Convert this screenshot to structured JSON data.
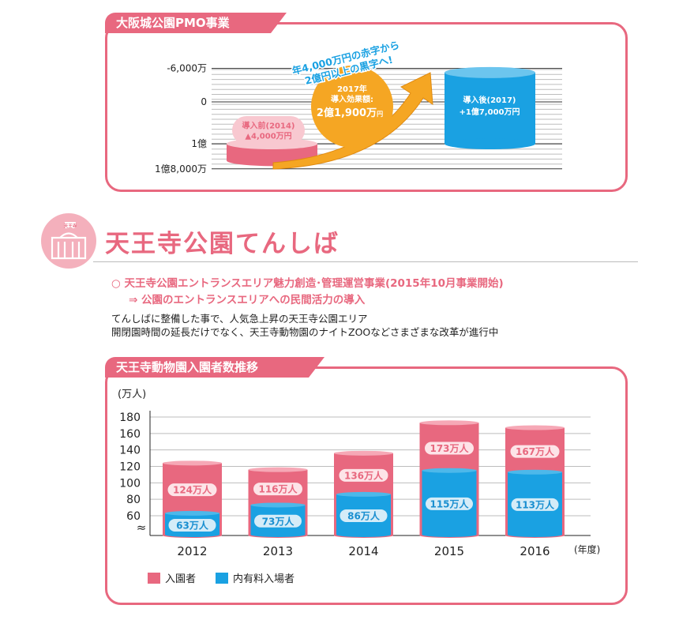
{
  "colors": {
    "accent": "#e8687f",
    "pink_bar": "#e8687f",
    "blue_bar": "#1aa1e2",
    "yellow": "#f5a623",
    "text": "#222222"
  },
  "pmo": {
    "tab_label": "大阪城公園PMO事業",
    "ticks": [
      "1億8,000万",
      "1億",
      "0",
      "-6,000万"
    ],
    "before_label": "導入前(2014)",
    "before_value": "▲4,000万円",
    "after_label": "導入後(2017)",
    "after_value": "+1億7,000万円",
    "effect_line1": "2017年",
    "effect_line2": "導入効果額:",
    "effect_amount": "2億1,900万",
    "effect_unit": "円",
    "arrow_line1": "年4,000万円の赤字から",
    "arrow_line2": "2億円以上の黒字へ!"
  },
  "tennoji": {
    "title": "天王寺公園てんしば",
    "icon_label": "天王寺",
    "bullet": "○  天王寺公園エントランスエリア魅力創造･管理運営事業(2015年10月事業開始)",
    "arrow_line": "⇒ 公園のエントランスエリアへの民間活力の導入",
    "body1": "てんしばに整備した事で、人気急上昇の天王寺公園エリア",
    "body2": "開閉園時間の延長だけでなく、天王寺動物園のナイトZOOなどさまざまな改革が進行中"
  },
  "zoo": {
    "tab_label": "天王寺動物園入園者数推移",
    "unit_label": "(万人)",
    "year_unit": "(年度)",
    "break_mark": "≈",
    "legend": [
      {
        "label": "入園者",
        "color": "#e8687f"
      },
      {
        "label": "内有料入場者",
        "color": "#1aa1e2"
      }
    ]
  },
  "chart_data": [
    {
      "type": "bar",
      "title": "大阪城公園PMO事業",
      "unit": "円",
      "categories": [
        "導入前(2014)",
        "導入後(2017)"
      ],
      "values": [
        -40000000,
        170000000
      ],
      "yticks": [
        -60000000,
        0,
        100000000,
        180000000
      ],
      "ylim": [
        -60000000,
        180000000
      ],
      "annotations": [
        "2017年 導入効果額: 2億1,900万円",
        "年4,000万円の赤字から 2億円以上の黒字へ!"
      ]
    },
    {
      "type": "bar",
      "title": "天王寺動物園入園者数推移",
      "xlabel": "(年度)",
      "ylabel": "(万人)",
      "categories": [
        "2012",
        "2013",
        "2014",
        "2015",
        "2016"
      ],
      "series": [
        {
          "name": "入園者",
          "values": [
            124,
            116,
            136,
            173,
            167
          ],
          "labels": [
            "124万人",
            "116万人",
            "136万人",
            "173万人",
            "167万人"
          ]
        },
        {
          "name": "内有料入場者",
          "values": [
            63,
            73,
            86,
            115,
            113
          ],
          "labels": [
            "63万人",
            "73万人",
            "86万人",
            "115万人",
            "113万人"
          ]
        }
      ],
      "yticks": [
        60,
        80,
        100,
        120,
        140,
        160,
        180
      ],
      "ylim": [
        60,
        180
      ],
      "axis_break": true
    }
  ]
}
